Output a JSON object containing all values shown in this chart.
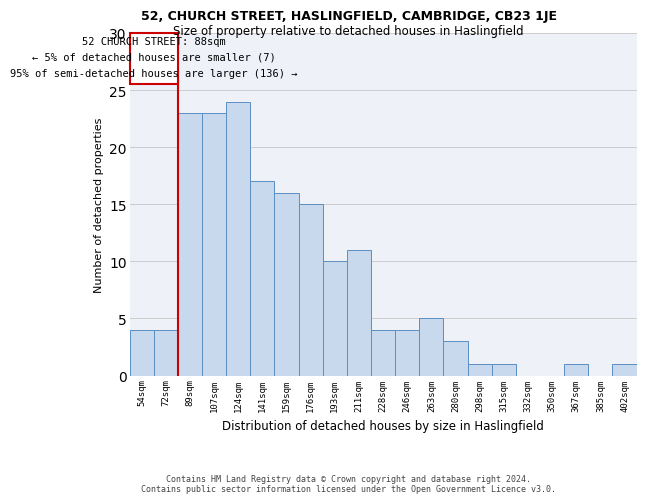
{
  "title1": "52, CHURCH STREET, HASLINGFIELD, CAMBRIDGE, CB23 1JE",
  "title2": "Size of property relative to detached houses in Haslingfield",
  "xlabel": "Distribution of detached houses by size in Haslingfield",
  "ylabel": "Number of detached properties",
  "categories": [
    "54sqm",
    "72sqm",
    "89sqm",
    "107sqm",
    "124sqm",
    "141sqm",
    "159sqm",
    "176sqm",
    "193sqm",
    "211sqm",
    "228sqm",
    "246sqm",
    "263sqm",
    "280sqm",
    "298sqm",
    "315sqm",
    "332sqm",
    "350sqm",
    "367sqm",
    "385sqm",
    "402sqm"
  ],
  "values": [
    4,
    4,
    23,
    23,
    24,
    17,
    16,
    15,
    10,
    11,
    4,
    4,
    5,
    3,
    1,
    1,
    0,
    0,
    1,
    0,
    1
  ],
  "bar_color": "#c9d9ed",
  "bar_edge_color": "#5a8fc2",
  "property_label": "52 CHURCH STREET: 88sqm",
  "annotation_line1": "← 5% of detached houses are smaller (7)",
  "annotation_line2": "95% of semi-detached houses are larger (136) →",
  "vline_bin_index": 2,
  "vline_color": "#cc0000",
  "ylim": [
    0,
    30
  ],
  "yticks": [
    0,
    5,
    10,
    15,
    20,
    25,
    30
  ],
  "grid_color": "#cccccc",
  "bg_color": "#eef2f8",
  "footer1": "Contains HM Land Registry data © Crown copyright and database right 2024.",
  "footer2": "Contains public sector information licensed under the Open Government Licence v3.0."
}
